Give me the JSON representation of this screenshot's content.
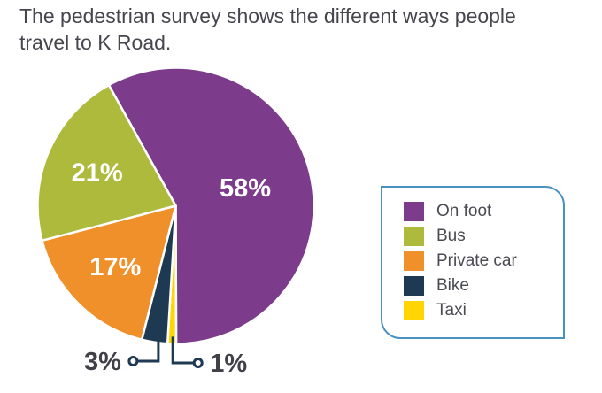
{
  "title": {
    "text": "The pedestrian survey shows the different ways people\ntravel to K Road."
  },
  "chart_data": {
    "type": "pie",
    "title": "The pedestrian survey shows the different ways people travel to K Road.",
    "unit": "percent",
    "start_angle_deg": -29,
    "direction": "clockwise",
    "slices": [
      {
        "label": "On foot",
        "value": 58,
        "pct_label": "58%",
        "color": "#7d3b8c",
        "label_placement": "inside"
      },
      {
        "label": "Taxi",
        "value": 1,
        "pct_label": "1%",
        "color": "#ffd503",
        "label_placement": "outside-right"
      },
      {
        "label": "Bike",
        "value": 3,
        "pct_label": "3%",
        "color": "#1d3a52",
        "label_placement": "outside-left"
      },
      {
        "label": "Private car",
        "value": 17,
        "pct_label": "17%",
        "color": "#f0902b",
        "label_placement": "inside"
      },
      {
        "label": "Bus",
        "value": 21,
        "pct_label": "21%",
        "color": "#aeba3c",
        "label_placement": "inside"
      }
    ],
    "legend_position": "right",
    "grid": false
  },
  "legend": {
    "items": [
      {
        "label": "On foot",
        "color": "#7d3b8c"
      },
      {
        "label": "Bus",
        "color": "#aeba3c"
      },
      {
        "label": "Private car",
        "color": "#f0902b"
      },
      {
        "label": "Bike",
        "color": "#1d3a52"
      },
      {
        "label": "Taxi",
        "color": "#ffd503"
      }
    ],
    "border_color": "#4a91c3"
  },
  "colors": {
    "background": "#ffffff",
    "title_text": "#46464e",
    "inside_label_text": "#ffffff",
    "outside_label_text": "#413f48",
    "leader_line": "#1d3a52",
    "slice_separator": "#ffffff"
  }
}
